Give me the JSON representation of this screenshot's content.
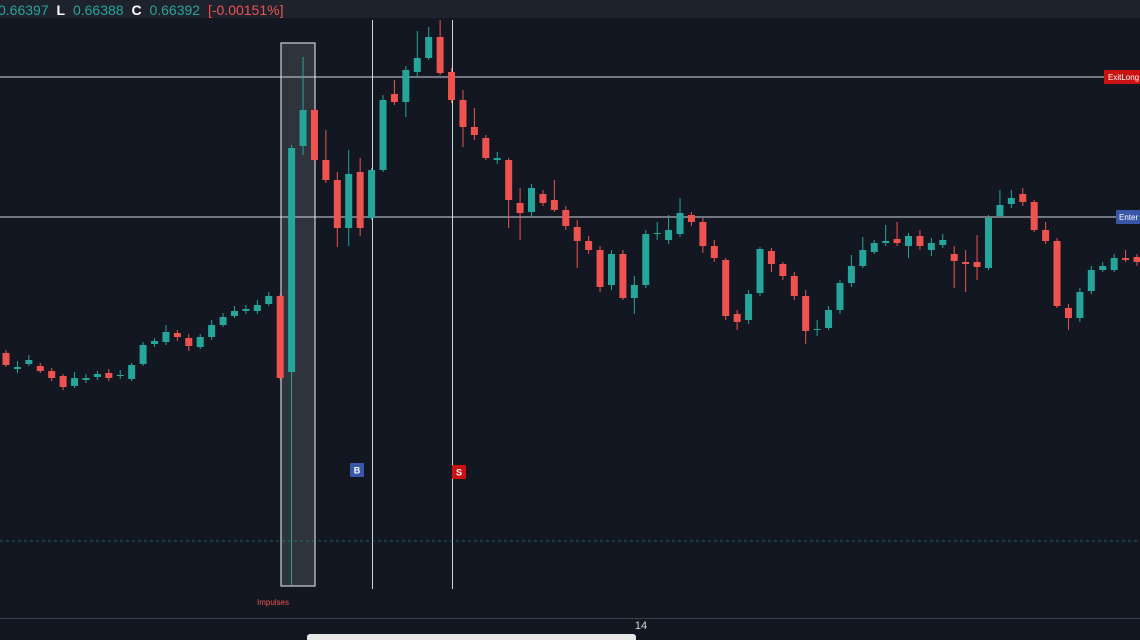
{
  "header": {
    "open": "0.66397",
    "low_key": "L",
    "low": "0.66388",
    "close_key": "C",
    "close": "0.66392",
    "change": "[-0.00151%]"
  },
  "chart_data": {
    "type": "candlestick",
    "up_color": "#26a69a",
    "down_color": "#ef5350",
    "ylim": [
      0.66036,
      0.66637
    ],
    "open": [
      0.66301,
      0.66285,
      0.6629,
      0.66288,
      0.66283,
      0.66278,
      0.66268,
      0.66274,
      0.66277,
      0.66281,
      0.66278,
      0.66275,
      0.6629,
      0.6631,
      0.66312,
      0.66321,
      0.66316,
      0.66307,
      0.66317,
      0.66329,
      0.66338,
      0.66343,
      0.66343,
      0.6635,
      0.66358,
      0.66282,
      0.66508,
      0.66544,
      0.66494,
      0.66474,
      0.66426,
      0.66482,
      0.66436,
      0.66484,
      0.6656,
      0.66552,
      0.66582,
      0.66596,
      0.66617,
      0.66582,
      0.66554,
      0.66527,
      0.66516,
      0.66494,
      0.66494,
      0.66451,
      0.66442,
      0.6646,
      0.66454,
      0.66444,
      0.66427,
      0.66413,
      0.66404,
      0.66369,
      0.664,
      0.66356,
      0.66369,
      0.6642,
      0.66414,
      0.6642,
      0.66439,
      0.66432,
      0.66408,
      0.66394,
      0.6634,
      0.66334,
      0.66361,
      0.66403,
      0.6639,
      0.66378,
      0.66358,
      0.66324,
      0.66326,
      0.66344,
      0.66371,
      0.66388,
      0.66402,
      0.66411,
      0.66415,
      0.66408,
      0.66418,
      0.66404,
      0.66409,
      0.664,
      0.66392,
      0.66392,
      0.66386,
      0.66438,
      0.6645,
      0.6646,
      0.66452,
      0.66424,
      0.66413,
      0.66346,
      0.66336,
      0.66363,
      0.66384,
      0.66384,
      0.66396,
      0.66397
    ],
    "high": [
      0.66304,
      0.66293,
      0.66299,
      0.66291,
      0.66286,
      0.6628,
      0.66282,
      0.6628,
      0.66283,
      0.66285,
      0.66284,
      0.66291,
      0.66312,
      0.66316,
      0.66329,
      0.66324,
      0.6632,
      0.6632,
      0.66334,
      0.66341,
      0.66348,
      0.66349,
      0.66354,
      0.66362,
      0.6636,
      0.66509,
      0.66597,
      0.66546,
      0.66524,
      0.66482,
      0.66504,
      0.66496,
      0.66486,
      0.66559,
      0.66574,
      0.66588,
      0.66623,
      0.66627,
      0.66634,
      0.66586,
      0.66564,
      0.66546,
      0.66519,
      0.66502,
      0.66496,
      0.66466,
      0.6647,
      0.66464,
      0.66474,
      0.66448,
      0.66434,
      0.66418,
      0.66408,
      0.66404,
      0.66404,
      0.66378,
      0.66424,
      0.66432,
      0.66439,
      0.66456,
      0.66442,
      0.66436,
      0.66414,
      0.66396,
      0.66344,
      0.66364,
      0.66407,
      0.66406,
      0.66392,
      0.66382,
      0.66364,
      0.66334,
      0.66348,
      0.66374,
      0.66399,
      0.66417,
      0.66414,
      0.66429,
      0.66432,
      0.66421,
      0.66424,
      0.66416,
      0.6642,
      0.66408,
      0.66404,
      0.66419,
      0.66439,
      0.66464,
      0.66464,
      0.66466,
      0.66454,
      0.66432,
      0.66416,
      0.6635,
      0.66366,
      0.66388,
      0.66392,
      0.664,
      0.66404,
      0.664
    ],
    "low": [
      0.66287,
      0.66281,
      0.66288,
      0.66281,
      0.66273,
      0.66264,
      0.66266,
      0.66271,
      0.66274,
      0.66273,
      0.66275,
      0.66273,
      0.66288,
      0.66307,
      0.66309,
      0.66313,
      0.66303,
      0.66305,
      0.66314,
      0.66327,
      0.66336,
      0.6634,
      0.6634,
      0.66348,
      0.66274,
      0.66069,
      0.66499,
      0.66492,
      0.66471,
      0.66407,
      0.66408,
      0.66418,
      0.66434,
      0.66482,
      0.66549,
      0.66537,
      0.66576,
      0.66594,
      0.66579,
      0.66551,
      0.66507,
      0.66514,
      0.66494,
      0.6649,
      0.66426,
      0.66414,
      0.66438,
      0.66448,
      0.66442,
      0.66424,
      0.66386,
      0.664,
      0.66362,
      0.66364,
      0.66354,
      0.6634,
      0.66366,
      0.66414,
      0.6641,
      0.66417,
      0.66428,
      0.66401,
      0.66392,
      0.66334,
      0.66324,
      0.6633,
      0.66358,
      0.66382,
      0.66374,
      0.66354,
      0.6631,
      0.66318,
      0.66324,
      0.6634,
      0.66367,
      0.66386,
      0.664,
      0.66408,
      0.66408,
      0.66396,
      0.66404,
      0.66398,
      0.66406,
      0.66366,
      0.66362,
      0.66374,
      0.66384,
      0.66436,
      0.66446,
      0.66448,
      0.66422,
      0.6641,
      0.66346,
      0.66324,
      0.66332,
      0.6636,
      0.66382,
      0.66382,
      0.66392,
      0.66388
    ],
    "close": [
      0.66289,
      0.66287,
      0.66294,
      0.66283,
      0.66276,
      0.66267,
      0.66276,
      0.66276,
      0.6628,
      0.66276,
      0.66279,
      0.66289,
      0.66309,
      0.66313,
      0.66322,
      0.66317,
      0.66308,
      0.66317,
      0.66329,
      0.66337,
      0.66343,
      0.66345,
      0.66349,
      0.66358,
      0.66276,
      0.66506,
      0.66544,
      0.66494,
      0.66474,
      0.66426,
      0.6648,
      0.66426,
      0.66484,
      0.66554,
      0.66552,
      0.66584,
      0.66596,
      0.66617,
      0.66581,
      0.66554,
      0.66527,
      0.66519,
      0.66496,
      0.66496,
      0.66454,
      0.66441,
      0.66466,
      0.66451,
      0.66444,
      0.66428,
      0.66413,
      0.66404,
      0.66367,
      0.664,
      0.66356,
      0.66369,
      0.6642,
      0.66421,
      0.66424,
      0.66441,
      0.66432,
      0.66408,
      0.66396,
      0.66338,
      0.66332,
      0.6636,
      0.66405,
      0.6639,
      0.66378,
      0.66358,
      0.66323,
      0.66325,
      0.66344,
      0.66371,
      0.66388,
      0.66404,
      0.66411,
      0.66413,
      0.66411,
      0.66418,
      0.66408,
      0.66411,
      0.66414,
      0.66393,
      0.6639,
      0.66387,
      0.66436,
      0.66449,
      0.66456,
      0.66452,
      0.66424,
      0.66413,
      0.66348,
      0.66336,
      0.66362,
      0.66384,
      0.66388,
      0.66396,
      0.66394,
      0.66392
    ],
    "levels": [
      {
        "label": "ExitLong",
        "value": 0.66577,
        "color": "#cc1111"
      },
      {
        "label": "Enter",
        "value": 0.66437,
        "color": "#3a56a8"
      }
    ],
    "dashed_level": 0.66113,
    "signals": [
      {
        "label": "B",
        "color": "#3a56a8"
      },
      {
        "label": "S",
        "color": "#cc1111"
      }
    ],
    "box_label": "Impulses",
    "time_label": "14"
  }
}
